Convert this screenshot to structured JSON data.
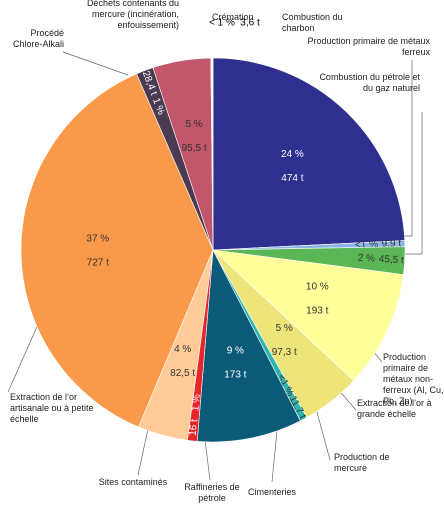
{
  "chart_data": {
    "type": "pie",
    "categories": [
      "Combustion du charbon",
      "Production primaire de métaux ferreux",
      "Combustion du pétrole et du gaz naturel",
      "Production primaire de métaux non-ferreux (Al, Cu, Pb, Zn)",
      "Extraction de l’or à grande échelle",
      "Production de mercure",
      "Cimenteries",
      "Raffineries de pétrole",
      "Sites contaminés",
      "Extraction de l’or artisanale ou à petite échelle",
      "Procédé Chlore-Alkali",
      "Déchets contenants du mercure (incinération, enfouissement)",
      "Crémation"
    ],
    "values": [
      474,
      9.9,
      45.5,
      193,
      97.3,
      11.7,
      173,
      16,
      82.5,
      727,
      28.4,
      95.5,
      3.6
    ],
    "value_labels": [
      "474 t",
      "9,9 t",
      "45,5 t",
      "193 t",
      "97,3 t",
      "11,7 t",
      "173 t",
      "16 t",
      "82,5 t",
      "727 t",
      "28,4 t",
      "95,5 t",
      "3,6 t"
    ],
    "shares": [
      "24 %",
      "<1 %",
      "2 %",
      "10 %",
      "5 %",
      "<1 %",
      "9 %",
      "1 %",
      "4 %",
      "37 %",
      "1 %",
      "5 %",
      "< 1 %"
    ],
    "colors": [
      "#2e2f8f",
      "#8ab4e8",
      "#5bb655",
      "#ffff99",
      "#eee57a",
      "#2fb5b0",
      "#0b5a78",
      "#e8262a",
      "#ffcc99",
      "#f99a4a",
      "#4a3b52",
      "#c2566a",
      "#f4f4f4"
    ]
  }
}
